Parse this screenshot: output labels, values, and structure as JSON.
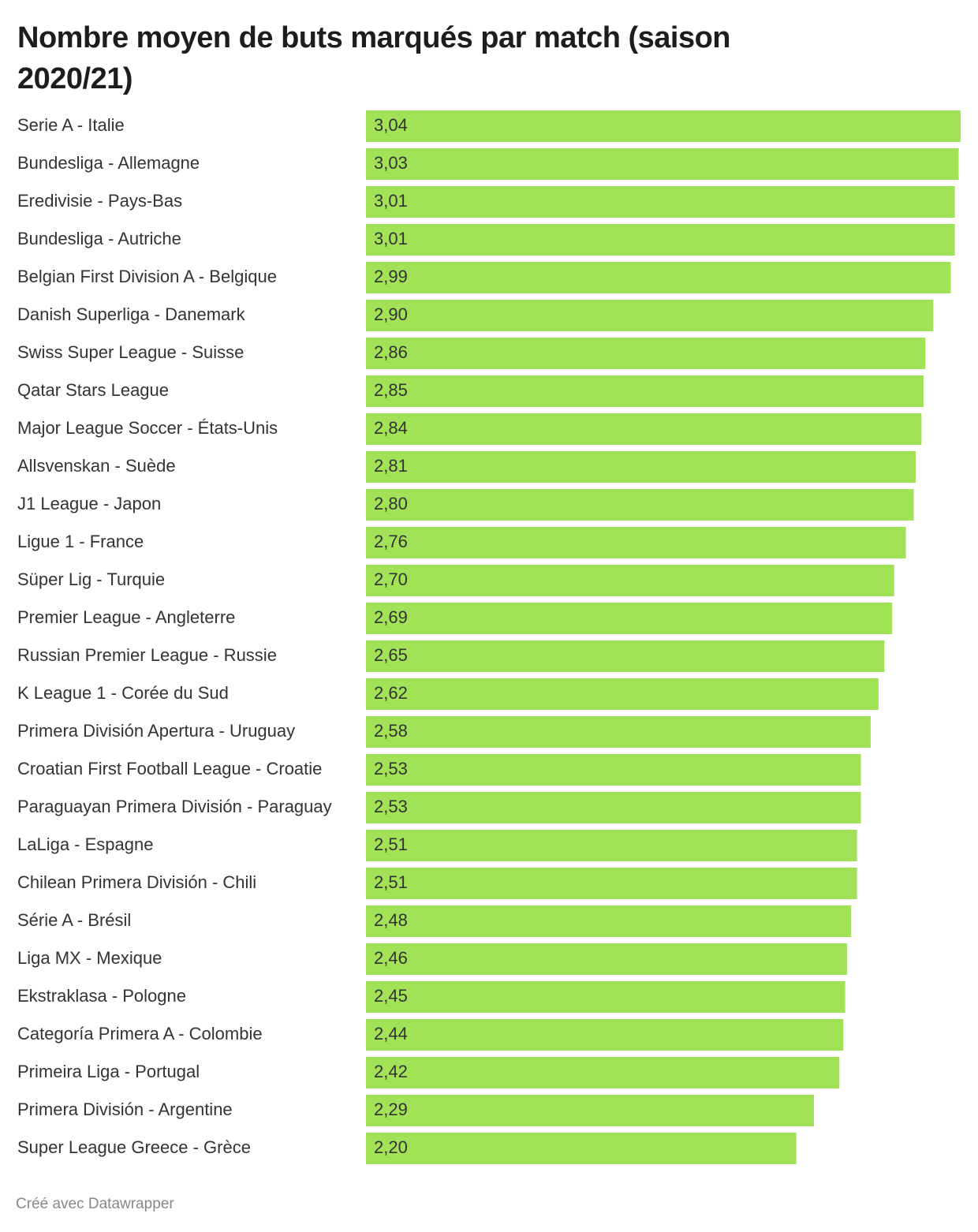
{
  "chart_data": {
    "type": "bar",
    "orientation": "horizontal",
    "title": "Nombre moyen de buts marqués par match (saison 2020/21)",
    "footer": "Créé avec Datawrapper",
    "categories": [
      "Serie A - Italie",
      "Bundesliga - Allemagne",
      "Eredivisie - Pays-Bas",
      "Bundesliga - Autriche",
      "Belgian First Division A - Belgique",
      "Danish Superliga - Danemark",
      "Swiss Super League - Suisse",
      "Qatar Stars League",
      "Major League Soccer - États-Unis",
      "Allsvenskan - Suède",
      "J1 League - Japon",
      "Ligue 1 - France",
      "Süper Lig - Turquie",
      "Premier League - Angleterre",
      "Russian Premier League - Russie",
      "K League 1 - Corée du Sud",
      "Primera División Apertura - Uruguay",
      "Croatian First Football League - Croatie",
      "Paraguayan Primera División - Paraguay",
      "LaLiga - Espagne",
      "Chilean Primera División - Chili",
      "Série A - Brésil",
      "Liga MX - Mexique",
      "Ekstraklasa - Pologne",
      "Categoría Primera A - Colombie",
      "Primeira Liga - Portugal",
      "Primera División - Argentine",
      "Super League Greece - Grèce"
    ],
    "values": [
      3.04,
      3.03,
      3.01,
      3.01,
      2.99,
      2.9,
      2.86,
      2.85,
      2.84,
      2.81,
      2.8,
      2.76,
      2.7,
      2.69,
      2.65,
      2.62,
      2.58,
      2.53,
      2.53,
      2.51,
      2.51,
      2.48,
      2.46,
      2.45,
      2.44,
      2.42,
      2.29,
      2.2
    ],
    "value_labels": [
      "3,04",
      "3,03",
      "3,01",
      "3,01",
      "2,99",
      "2,90",
      "2,86",
      "2,85",
      "2,84",
      "2,81",
      "2,80",
      "2,76",
      "2,70",
      "2,69",
      "2,65",
      "2,62",
      "2,58",
      "2,53",
      "2,53",
      "2,51",
      "2,51",
      "2,48",
      "2,46",
      "2,45",
      "2,44",
      "2,42",
      "2,29",
      "2,20"
    ],
    "color": "#a2e257",
    "xlim": [
      0,
      3.04
    ]
  }
}
